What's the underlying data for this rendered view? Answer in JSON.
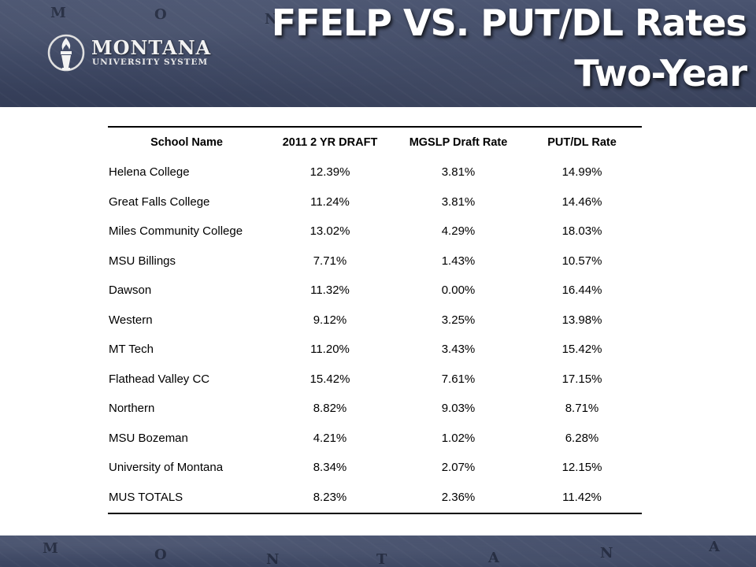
{
  "logo": {
    "name": "MONTANA",
    "subtitle": "UNIVERSITY SYSTEM"
  },
  "title": {
    "line1": "FFELP VS. PUT/DL Rates",
    "line2": "Two-Year"
  },
  "table": {
    "headers": [
      "School Name",
      "2011 2 YR DRAFT",
      "MGSLP Draft Rate",
      "PUT/DL Rate"
    ],
    "rows": [
      [
        "Helena College",
        "12.39%",
        "3.81%",
        "14.99%"
      ],
      [
        "Great Falls College",
        "11.24%",
        "3.81%",
        "14.46%"
      ],
      [
        "Miles Community College",
        "13.02%",
        "4.29%",
        "18.03%"
      ],
      [
        "MSU Billings",
        "7.71%",
        "1.43%",
        "10.57%"
      ],
      [
        "Dawson",
        "11.32%",
        "0.00%",
        "16.44%"
      ],
      [
        "Western",
        "9.12%",
        "3.25%",
        "13.98%"
      ],
      [
        "MT Tech",
        "11.20%",
        "3.43%",
        "15.42%"
      ],
      [
        "Flathead Valley CC",
        "15.42%",
        "7.61%",
        "17.15%"
      ],
      [
        "Northern",
        "8.82%",
        "9.03%",
        "8.71%"
      ],
      [
        "MSU Bozeman",
        "4.21%",
        "1.02%",
        "6.28%"
      ],
      [
        "University of Montana",
        "8.34%",
        "2.07%",
        "12.15%"
      ],
      [
        "MUS TOTALS",
        "8.23%",
        "2.36%",
        "11.42%"
      ]
    ]
  },
  "colors": {
    "banner": "#3a4460",
    "title_text": "#ffffff",
    "rule": "#000000"
  },
  "icons": {
    "logo_mark": "torch-icon"
  },
  "background_map_letters": [
    "M",
    "O",
    "N",
    "T",
    "A",
    "N",
    "A"
  ]
}
